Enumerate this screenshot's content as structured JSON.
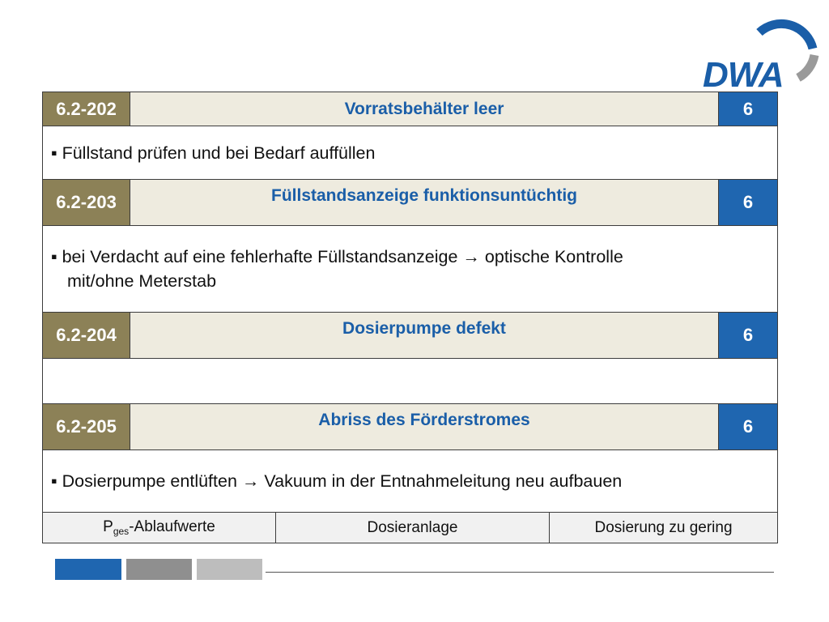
{
  "logo": {
    "text": "DWA",
    "ring_colors": [
      "#1a5ea8",
      "#9a9a9a"
    ]
  },
  "rows": [
    {
      "code": "6.2-202",
      "title": "Vorratsbehälter leer",
      "number": "6",
      "desc": [
        "▪ Füllstand prüfen und bei Bedarf auffüllen"
      ]
    },
    {
      "code": "6.2-203",
      "title": "Füllstandsanzeige funktionsuntüchtig",
      "number": "6",
      "desc": [
        "▪ bei Verdacht auf eine fehlerhafte Füllstandsanzeige → optische Kontrolle",
        "mit/ohne Meterstab"
      ]
    },
    {
      "code": "6.2-204",
      "title": "Dosierpumpe defekt",
      "number": "6",
      "desc": []
    },
    {
      "code": "6.2-205",
      "title": "Abriss des Förderstromes",
      "number": "6",
      "desc": [
        "▪ Dosierpumpe entlüften → Vakuum in der Entnahmeleitung neu aufbauen"
      ]
    }
  ],
  "footer": {
    "col1_main": "P",
    "col1_sub": "ges",
    "col1_rest": "-Ablaufwerte",
    "col2": "Dosieranlage",
    "col3": "Dosierung zu gering"
  },
  "colors": {
    "code_bg": "#8c8157",
    "title_bg": "#eeebdf",
    "num_bg": "#1f66b0",
    "accent_blue": "#1a5ea8"
  },
  "bottom_bars": [
    "#1f66b0",
    "#8f8f8f",
    "#bdbdbd"
  ]
}
